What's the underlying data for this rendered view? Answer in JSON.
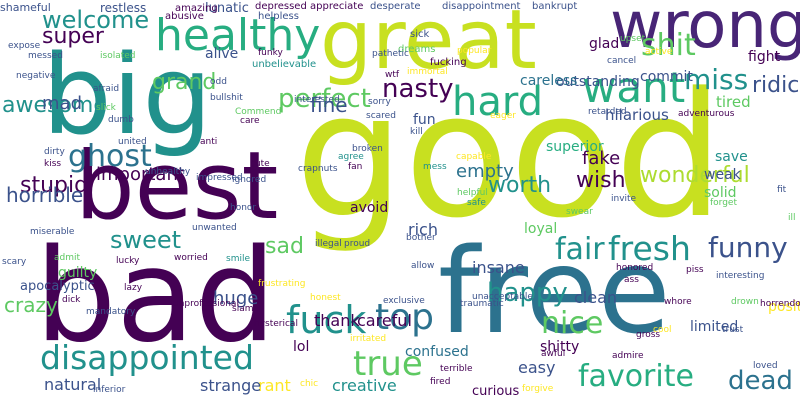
{
  "palette": {
    "purple": "#440154",
    "indigo": "#482576",
    "slate": "#3b528b",
    "teal_blue": "#2c728e",
    "teal": "#21918c",
    "green_teal": "#27ad81",
    "green": "#5ec962",
    "lime": "#addc30",
    "yellow": "#fde725",
    "olive_lime": "#c8e020"
  },
  "words": [
    {
      "text": "good",
      "color": "#c8e020"
    },
    {
      "text": "big",
      "color": "#21918c"
    },
    {
      "text": "bad",
      "color": "#440154"
    },
    {
      "text": "free",
      "color": "#2c728e"
    },
    {
      "text": "best",
      "color": "#440154"
    },
    {
      "text": "great",
      "color": "#c8e020"
    },
    {
      "text": "wrong",
      "color": "#482576"
    },
    {
      "text": "healthy",
      "color": "#27ad81"
    },
    {
      "text": "disappointed",
      "color": "#21918c"
    },
    {
      "text": "want",
      "color": "#27ad81"
    },
    {
      "text": "hard",
      "color": "#27ad81"
    },
    {
      "text": "fuck",
      "color": "#21918c"
    },
    {
      "text": "fresh",
      "color": "#21918c"
    },
    {
      "text": "fair",
      "color": "#21918c"
    },
    {
      "text": "favorite",
      "color": "#27ad81"
    },
    {
      "text": "funny",
      "color": "#3b528b"
    },
    {
      "text": "true",
      "color": "#5ec962"
    },
    {
      "text": "top",
      "color": "#2c728e"
    },
    {
      "text": "nice",
      "color": "#5ec962"
    },
    {
      "text": "ghost",
      "color": "#2c728e"
    },
    {
      "text": "shit",
      "color": "#5ec962"
    },
    {
      "text": "miss",
      "color": "#21918c"
    },
    {
      "text": "nasty",
      "color": "#440154"
    },
    {
      "text": "happy",
      "color": "#21918c"
    },
    {
      "text": "dead",
      "color": "#2c728e"
    },
    {
      "text": "perfect",
      "color": "#5ec962"
    },
    {
      "text": "sweet",
      "color": "#21918c"
    },
    {
      "text": "welcome",
      "color": "#21918c"
    },
    {
      "text": "super",
      "color": "#440154"
    },
    {
      "text": "awesome",
      "color": "#21918c"
    },
    {
      "text": "grand",
      "color": "#5ec962"
    },
    {
      "text": "wish",
      "color": "#440154"
    },
    {
      "text": "fine",
      "color": "#3b528b"
    },
    {
      "text": "worth",
      "color": "#21918c"
    },
    {
      "text": "stupid",
      "color": "#440154"
    },
    {
      "text": "horrible",
      "color": "#3b528b"
    },
    {
      "text": "crazy",
      "color": "#5ec962"
    },
    {
      "text": "sad",
      "color": "#5ec962"
    },
    {
      "text": "wonderful",
      "color": "#addc30"
    },
    {
      "text": "ridiculous",
      "color": "#3b528b"
    },
    {
      "text": "mad",
      "color": "#3b528b"
    },
    {
      "text": "important",
      "color": "#440154"
    },
    {
      "text": "empty",
      "color": "#2c728e"
    },
    {
      "text": "fake",
      "color": "#440154"
    },
    {
      "text": "huge",
      "color": "#3b528b"
    },
    {
      "text": "insane",
      "color": "#3b528b"
    },
    {
      "text": "rich",
      "color": "#3b528b"
    },
    {
      "text": "natural",
      "color": "#3b528b"
    },
    {
      "text": "careful",
      "color": "#440154"
    },
    {
      "text": "thank",
      "color": "#440154"
    },
    {
      "text": "creative",
      "color": "#21918c"
    },
    {
      "text": "rant",
      "color": "#fde725"
    },
    {
      "text": "strange",
      "color": "#3b528b"
    },
    {
      "text": "curious",
      "color": "#440154"
    },
    {
      "text": "easy",
      "color": "#3b528b"
    },
    {
      "text": "clean",
      "color": "#3b528b"
    },
    {
      "text": "positive",
      "color": "#fde725"
    },
    {
      "text": "fight",
      "color": "#440154"
    },
    {
      "text": "tired",
      "color": "#5ec962"
    },
    {
      "text": "hilarious",
      "color": "#3b528b"
    },
    {
      "text": "outstanding",
      "color": "#3b528b"
    },
    {
      "text": "superior",
      "color": "#27ad81"
    },
    {
      "text": "careless",
      "color": "#2c728e"
    },
    {
      "text": "commit",
      "color": "#3b528b"
    },
    {
      "text": "glad",
      "color": "#440154"
    },
    {
      "text": "loyal",
      "color": "#5ec962"
    },
    {
      "text": "solid",
      "color": "#5ec962"
    },
    {
      "text": "save",
      "color": "#21918c"
    },
    {
      "text": "weak",
      "color": "#3b528b"
    },
    {
      "text": "alive",
      "color": "#3b528b"
    },
    {
      "text": "fun",
      "color": "#3b528b"
    },
    {
      "text": "avoid",
      "color": "#440154"
    },
    {
      "text": "guilty",
      "color": "#5ec962"
    },
    {
      "text": "lol",
      "color": "#440154"
    },
    {
      "text": "confused",
      "color": "#2c728e"
    },
    {
      "text": "shitty",
      "color": "#440154"
    },
    {
      "text": "limited",
      "color": "#3b528b"
    },
    {
      "text": "apocalyptic",
      "color": "#3b528b"
    },
    {
      "text": "lunatic",
      "color": "#3b528b"
    },
    {
      "text": "restless",
      "color": "#3b528b"
    },
    {
      "text": "shameful",
      "color": "#3b528b"
    },
    {
      "text": "amazing",
      "color": "#440154"
    },
    {
      "text": "abusive",
      "color": "#440154"
    },
    {
      "text": "depressed",
      "color": "#440154"
    },
    {
      "text": "appreciate",
      "color": "#440154"
    },
    {
      "text": "helpless",
      "color": "#3b528b"
    },
    {
      "text": "desperate",
      "color": "#3b528b"
    },
    {
      "text": "disappointment",
      "color": "#3b528b"
    },
    {
      "text": "bankrupt",
      "color": "#3b528b"
    },
    {
      "text": "sick",
      "color": "#3b528b"
    },
    {
      "text": "dreams",
      "color": "#5ec962"
    },
    {
      "text": "popular",
      "color": "#fde725"
    },
    {
      "text": "upset",
      "color": "#5ec962"
    },
    {
      "text": "cancel",
      "color": "#3b528b"
    },
    {
      "text": "active",
      "color": "#fde725"
    },
    {
      "text": "fucking",
      "color": "#440154"
    },
    {
      "text": "immortal",
      "color": "#fde725"
    },
    {
      "text": "wtf",
      "color": "#440154"
    },
    {
      "text": "pathetic",
      "color": "#3b528b"
    },
    {
      "text": "unbelievable",
      "color": "#21918c"
    },
    {
      "text": "funky",
      "color": "#440154"
    },
    {
      "text": "messed",
      "color": "#3b528b"
    },
    {
      "text": "isolated",
      "color": "#5ec962"
    },
    {
      "text": "afraid",
      "color": "#3b528b"
    },
    {
      "text": "slick",
      "color": "#5ec962"
    },
    {
      "text": "dumb",
      "color": "#3b528b"
    },
    {
      "text": "bullshit",
      "color": "#3b528b"
    },
    {
      "text": "odd",
      "color": "#3b528b"
    },
    {
      "text": "Commend",
      "color": "#5ec962"
    },
    {
      "text": "care",
      "color": "#440154"
    },
    {
      "text": "interested",
      "color": "#3b528b"
    },
    {
      "text": "sorry",
      "color": "#3b528b"
    },
    {
      "text": "scared",
      "color": "#3b528b"
    },
    {
      "text": "kill",
      "color": "#3b528b"
    },
    {
      "text": "eager",
      "color": "#fde725"
    },
    {
      "text": "retarded",
      "color": "#3b528b"
    },
    {
      "text": "adventurous",
      "color": "#440154"
    },
    {
      "text": "united",
      "color": "#3b528b"
    },
    {
      "text": "anti",
      "color": "#440154"
    },
    {
      "text": "dirty",
      "color": "#3b528b"
    },
    {
      "text": "kiss",
      "color": "#440154"
    },
    {
      "text": "unhealthy",
      "color": "#3b528b"
    },
    {
      "text": "impressed",
      "color": "#3b528b"
    },
    {
      "text": "ignored",
      "color": "#3b528b"
    },
    {
      "text": "cute",
      "color": "#440154"
    },
    {
      "text": "crapnuts",
      "color": "#3b528b"
    },
    {
      "text": "broken",
      "color": "#3b528b"
    },
    {
      "text": "agree",
      "color": "#21918c"
    },
    {
      "text": "fan",
      "color": "#440154"
    },
    {
      "text": "mess",
      "color": "#21918c"
    },
    {
      "text": "capable",
      "color": "#fde725"
    },
    {
      "text": "helpful",
      "color": "#5ec962"
    },
    {
      "text": "safe",
      "color": "#21918c"
    },
    {
      "text": "invite",
      "color": "#3b528b"
    },
    {
      "text": "forget",
      "color": "#5ec962"
    },
    {
      "text": "fit",
      "color": "#3b528b"
    },
    {
      "text": "ill",
      "color": "#5ec962"
    },
    {
      "text": "swear",
      "color": "#5ec962"
    },
    {
      "text": "honor",
      "color": "#3b528b"
    },
    {
      "text": "miserable",
      "color": "#3b528b"
    },
    {
      "text": "unwanted",
      "color": "#3b528b"
    },
    {
      "text": "smile",
      "color": "#21918c"
    },
    {
      "text": "illegal",
      "color": "#3b528b"
    },
    {
      "text": "bother",
      "color": "#3b528b"
    },
    {
      "text": "proud",
      "color": "#3b528b"
    },
    {
      "text": "scary",
      "color": "#3b528b"
    },
    {
      "text": "admit",
      "color": "#5ec962"
    },
    {
      "text": "lucky",
      "color": "#440154"
    },
    {
      "text": "worried",
      "color": "#440154"
    },
    {
      "text": "allow",
      "color": "#3b528b"
    },
    {
      "text": "honored",
      "color": "#440154"
    },
    {
      "text": "piss",
      "color": "#440154"
    },
    {
      "text": "interesting",
      "color": "#3b528b"
    },
    {
      "text": "dick",
      "color": "#440154"
    },
    {
      "text": "lazy",
      "color": "#440154"
    },
    {
      "text": "frustrating",
      "color": "#fde725"
    },
    {
      "text": "honest",
      "color": "#fde725"
    },
    {
      "text": "exclusive",
      "color": "#3b528b"
    },
    {
      "text": "traumatic",
      "color": "#3b528b"
    },
    {
      "text": "unacceptable",
      "color": "#3b528b"
    },
    {
      "text": "ass",
      "color": "#440154"
    },
    {
      "text": "whore",
      "color": "#440154"
    },
    {
      "text": "drown",
      "color": "#5ec962"
    },
    {
      "text": "horrendous",
      "color": "#440154"
    },
    {
      "text": "mandatory",
      "color": "#3b528b"
    },
    {
      "text": "unprofessional",
      "color": "#440154"
    },
    {
      "text": "slam",
      "color": "#440154"
    },
    {
      "text": "hysterical",
      "color": "#440154"
    },
    {
      "text": "irritated",
      "color": "#fde725"
    },
    {
      "text": "cool",
      "color": "#fde725"
    },
    {
      "text": "gross",
      "color": "#440154"
    },
    {
      "text": "trust",
      "color": "#3b528b"
    },
    {
      "text": "admire",
      "color": "#440154"
    },
    {
      "text": "awful",
      "color": "#440154"
    },
    {
      "text": "chic",
      "color": "#fde725"
    },
    {
      "text": "fired",
      "color": "#440154"
    },
    {
      "text": "terrible",
      "color": "#440154"
    },
    {
      "text": "forgive",
      "color": "#fde725"
    },
    {
      "text": "inferior",
      "color": "#3b528b"
    },
    {
      "text": "loved",
      "color": "#3b528b"
    },
    {
      "text": "expose",
      "color": "#3b528b"
    },
    {
      "text": "negative",
      "color": "#3b528b"
    }
  ]
}
